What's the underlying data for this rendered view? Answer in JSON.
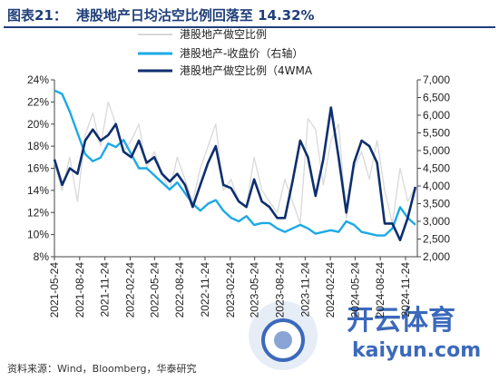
{
  "header": {
    "fig_label": "图表21：",
    "title": "港股地产日均沽空比例回落至 14.32%"
  },
  "source": "资料来源：Wind，Bloomberg，华泰研究",
  "watermark": {
    "brand": "开云体育",
    "url": "kaiyun.com"
  },
  "colors": {
    "short_ratio": "#d9d9d9",
    "close": "#1ca9e6",
    "wma": "#0d2f6e",
    "title": "#1f3f7a",
    "watermark": "#1a4fb0"
  },
  "chart_data": {
    "type": "line",
    "title": "港股地产日均沽空比例回落至 14.32%",
    "x": [
      "2021-05-24",
      "2021-06-21",
      "2021-07-19",
      "2021-08-16",
      "2021-09-13",
      "2021-10-11",
      "2021-11-08",
      "2021-12-06",
      "2022-01-03",
      "2022-01-31",
      "2022-02-28",
      "2022-03-28",
      "2022-04-25",
      "2022-05-23",
      "2022-06-20",
      "2022-07-18",
      "2022-08-15",
      "2022-09-12",
      "2022-10-10",
      "2022-11-07",
      "2022-12-05",
      "2023-01-02",
      "2023-01-30",
      "2023-02-27",
      "2023-03-27",
      "2023-04-24",
      "2023-05-22",
      "2023-06-19",
      "2023-07-17",
      "2023-08-14",
      "2023-09-11",
      "2023-10-09",
      "2023-11-06",
      "2023-12-04",
      "2024-01-01",
      "2024-01-29",
      "2024-02-26",
      "2024-03-25",
      "2024-04-22",
      "2024-05-20",
      "2024-06-17",
      "2024-07-15",
      "2024-08-12",
      "2024-09-09",
      "2024-10-07",
      "2024-11-04",
      "2024-12-02",
      "2024-12-30"
    ],
    "x_tick_labels": [
      "2021-05-24",
      "2021-08-24",
      "2021-11-24",
      "2022-02-24",
      "2022-05-24",
      "2022-08-24",
      "2022-11-24",
      "2023-02-24",
      "2023-05-24",
      "2023-08-24",
      "2023-11-24",
      "2024-02-24",
      "2024-05-24",
      "2024-08-24",
      "2024-11-24"
    ],
    "y_left": {
      "ylim": [
        8,
        24
      ],
      "ticks": [
        "8%",
        "10%",
        "12%",
        "14%",
        "16%",
        "18%",
        "20%",
        "22%",
        "24%"
      ]
    },
    "y_right": {
      "ylim": [
        2000,
        7000
      ],
      "ticks": [
        "2,000",
        "2,500",
        "3,000",
        "3,500",
        "4,000",
        "4,500",
        "5,000",
        "5,500",
        "6,000",
        "6,500",
        "7,000"
      ]
    },
    "legend_placement": "top-center",
    "grid": false,
    "series": [
      {
        "name": "港股地产做空比例",
        "axis": "left",
        "values": [
          16.5,
          14.0,
          17.0,
          13.0,
          19.0,
          21.0,
          18.0,
          22.0,
          20.0,
          17.5,
          18.5,
          20.0,
          16.0,
          17.5,
          15.5,
          14.0,
          17.0,
          15.0,
          13.0,
          16.0,
          18.0,
          20.0,
          14.0,
          15.0,
          13.0,
          12.5,
          17.0,
          14.0,
          13.0,
          12.0,
          15.0,
          13.0,
          11.0,
          20.5,
          19.5,
          14.5,
          18.5,
          20.0,
          11.5,
          16.0,
          17.5,
          15.0,
          18.5,
          14.0,
          11.0,
          16.0,
          13.0,
          14.32
        ]
      },
      {
        "name": "港股地产-收盘价（右轴）",
        "axis": "right",
        "values": [
          6700,
          6600,
          6100,
          5500,
          4900,
          4700,
          4800,
          5200,
          5100,
          5300,
          4900,
          4500,
          4500,
          4300,
          4100,
          3900,
          4100,
          3800,
          3500,
          3300,
          3500,
          3600,
          3300,
          3100,
          3000,
          3150,
          2900,
          2950,
          2950,
          2800,
          2700,
          2800,
          2900,
          2800,
          2650,
          2700,
          2750,
          2700,
          3000,
          2900,
          2700,
          2650,
          2600,
          2600,
          2800,
          3400,
          3100,
          2900
        ]
      },
      {
        "name": "港股地产做空比例（4WMA",
        "axis": "left",
        "values": [
          16.8,
          14.5,
          16.0,
          15.5,
          18.5,
          19.5,
          18.5,
          19.0,
          20.0,
          17.5,
          17.0,
          18.5,
          16.5,
          17.0,
          15.5,
          14.8,
          15.5,
          14.5,
          12.5,
          14.5,
          16.5,
          18.0,
          14.5,
          14.2,
          13.0,
          12.5,
          15.0,
          13.0,
          12.5,
          11.5,
          11.5,
          14.8,
          18.5,
          17.0,
          13.5,
          16.8,
          21.5,
          17.0,
          12.0,
          16.5,
          18.5,
          18.0,
          16.5,
          11.0,
          11.0,
          9.5,
          11.5,
          14.32
        ]
      }
    ]
  }
}
